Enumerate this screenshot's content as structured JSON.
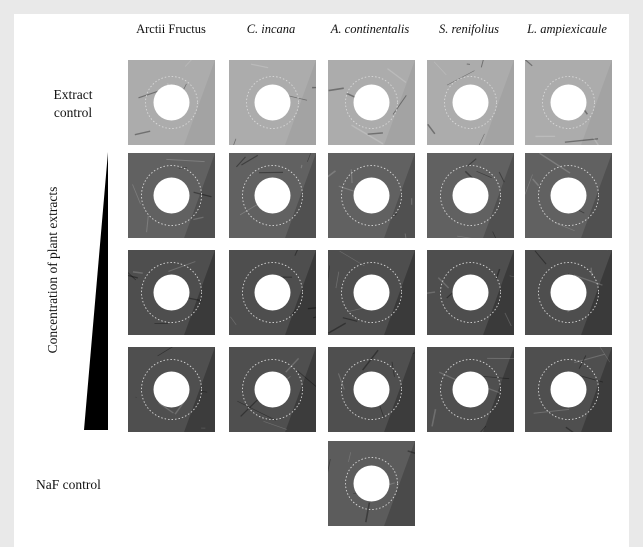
{
  "column_headers": [
    {
      "label": "Arctii Fructus",
      "italic": false
    },
    {
      "label": "C. incana",
      "italic": true
    },
    {
      "label": "A. continentalis",
      "italic": true
    },
    {
      "label": "S. renifolius",
      "italic": true
    },
    {
      "label": "L. ampiexicaule",
      "italic": true
    }
  ],
  "row_labels": {
    "extract_control": "Extract\ncontrol",
    "naf_control": "NaF control",
    "concentration_axis": "Concentration of plant extracts"
  },
  "grid": {
    "rows": 4,
    "columns": 5,
    "rows_info": [
      {
        "name": "extract-control",
        "tone": "#a3a3a3"
      },
      {
        "name": "concentration-low",
        "tone": "#505050"
      },
      {
        "name": "concentration-mid",
        "tone": "#3a3a3a"
      },
      {
        "name": "concentration-high",
        "tone": "#3c3c3c"
      }
    ],
    "naf_tone": "#4a4a4a"
  },
  "colors": {
    "background": "#ececec",
    "panel": "#ffffff",
    "hole": "#ffffff",
    "lesion_ring": "#d8d8d8",
    "wedge": "#000000"
  }
}
